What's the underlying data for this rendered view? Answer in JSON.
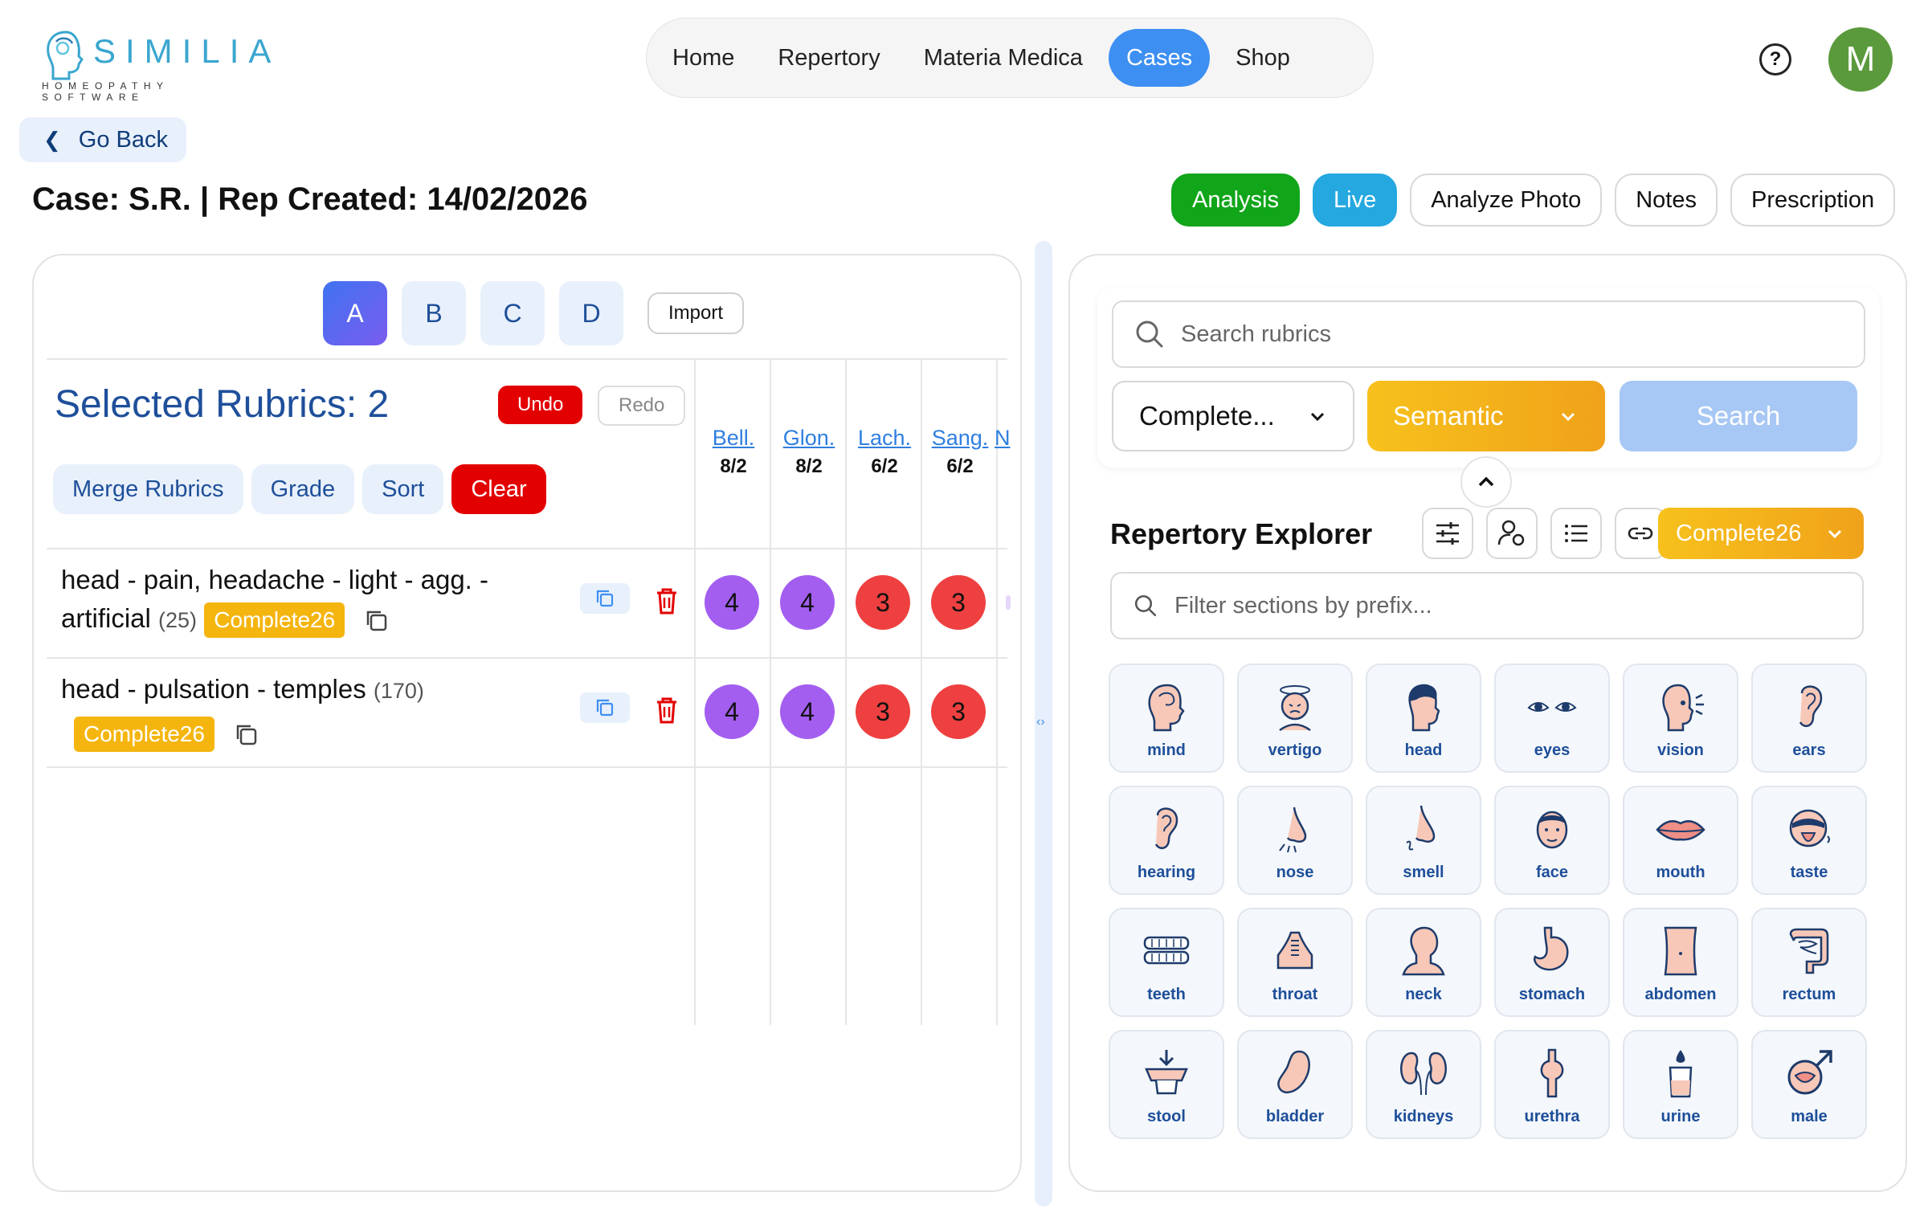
{
  "brand": {
    "name": "SIMILIA",
    "tagline": "HOMEOPATHY SOFTWARE"
  },
  "nav": [
    {
      "label": "Home",
      "active": false
    },
    {
      "label": "Repertory",
      "active": false
    },
    {
      "label": "Materia Medica",
      "active": false
    },
    {
      "label": "Cases",
      "active": true
    },
    {
      "label": "Shop",
      "active": false
    }
  ],
  "user": {
    "initial": "M",
    "color": "#5b9a3c"
  },
  "go_back": "Go Back",
  "case_title": "Case: S.R. | Rep Created: 14/02/2026",
  "header_buttons": {
    "analysis": "Analysis",
    "live": "Live",
    "analyze_photo": "Analyze Photo",
    "notes": "Notes",
    "prescription": "Prescription"
  },
  "sheets": {
    "tabs": [
      "A",
      "B",
      "C",
      "D"
    ],
    "active": "A",
    "import": "Import"
  },
  "selected": {
    "title": "Selected Rubrics: 2",
    "undo": "Undo",
    "redo": "Redo"
  },
  "tools": {
    "merge": "Merge Rubrics",
    "grade": "Grade",
    "sort": "Sort",
    "clear": "Clear"
  },
  "remedies": [
    {
      "name": "Bell.",
      "score": "8/2"
    },
    {
      "name": "Glon.",
      "score": "8/2"
    },
    {
      "name": "Lach.",
      "score": "6/2"
    },
    {
      "name": "Sang.",
      "score": "6/2"
    },
    {
      "name": "N"
    }
  ],
  "rubrics": [
    {
      "line1": "head - pain, headache - light - agg. -",
      "line2": "artificial",
      "count": "(25)",
      "tag": "Complete26",
      "grades": [
        "4",
        "4",
        "3",
        "3"
      ]
    },
    {
      "line1": "head - pulsation - temples",
      "count": "(170)",
      "tag": "Complete26",
      "grades": [
        "4",
        "4",
        "3",
        "3"
      ]
    }
  ],
  "colors": {
    "grade4": "#a35ef0",
    "grade3": "#ee4040",
    "accent": "#3d8ff2",
    "tag": "#f5b50f"
  },
  "search": {
    "placeholder": "Search rubrics",
    "repertory": "Complete...",
    "mode": "Semantic",
    "button": "Search"
  },
  "explorer": {
    "title": "Repertory Explorer",
    "repertory": "Complete26",
    "filter_placeholder": "Filter sections by prefix...",
    "icons": [
      "sliders-icon",
      "person-settings-icon",
      "list-icon",
      "link-icon"
    ],
    "sections": [
      "mind",
      "vertigo",
      "head",
      "eyes",
      "vision",
      "ears",
      "hearing",
      "nose",
      "smell",
      "face",
      "mouth",
      "taste",
      "teeth",
      "throat",
      "neck",
      "stomach",
      "abdomen",
      "rectum",
      "stool",
      "bladder",
      "kidneys",
      "urethra",
      "urine",
      "male"
    ]
  }
}
